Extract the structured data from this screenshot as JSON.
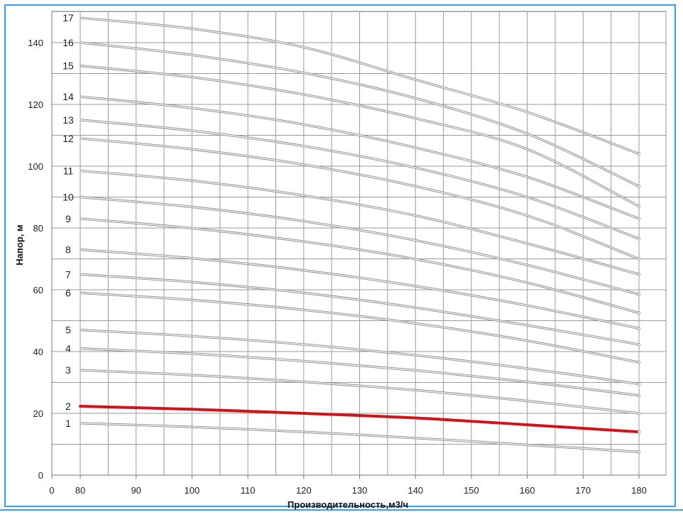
{
  "chart_data": {
    "type": "line",
    "title": "",
    "xlabel": "Производительность,м3/ч",
    "ylabel": "Напор, м",
    "xlim": [
      0,
      180
    ],
    "ylim": [
      0,
      150
    ],
    "x_ticks": [
      0,
      80,
      90,
      100,
      110,
      120,
      130,
      140,
      150,
      160,
      170,
      180
    ],
    "y_ticks": [
      0,
      20,
      40,
      60,
      80,
      100,
      120,
      140
    ],
    "grid": true,
    "legend": "none",
    "x": [
      80,
      100,
      120,
      140,
      160,
      180
    ],
    "series": [
      {
        "name": "1",
        "color": "#aaaaaa",
        "values": [
          16.8,
          15.6,
          14.0,
          12.0,
          9.8,
          7.5
        ]
      },
      {
        "name": "2",
        "color": "#d0141a",
        "highlight": true,
        "values": [
          22.3,
          21.3,
          20.0,
          18.5,
          16.3,
          14.0
        ]
      },
      {
        "name": "3",
        "color": "#aaaaaa",
        "values": [
          34.0,
          32.4,
          30.2,
          27.5,
          24.0,
          20.0
        ]
      },
      {
        "name": "4",
        "color": "#aaaaaa",
        "values": [
          41.0,
          39.3,
          36.9,
          33.9,
          30.2,
          25.8
        ]
      },
      {
        "name": "5",
        "color": "#aaaaaa",
        "values": [
          47.0,
          45.0,
          42.3,
          38.8,
          34.5,
          29.5
        ]
      },
      {
        "name": "6",
        "color": "#aaaaaa",
        "values": [
          59.0,
          56.7,
          53.5,
          49.1,
          43.5,
          36.5
        ]
      },
      {
        "name": "7",
        "color": "#aaaaaa",
        "values": [
          65.0,
          62.5,
          59.0,
          54.2,
          48.5,
          42.3
        ]
      },
      {
        "name": "8",
        "color": "#aaaaaa",
        "values": [
          73.0,
          70.2,
          66.3,
          61.2,
          54.9,
          47.5
        ]
      },
      {
        "name": "9",
        "color": "#aaaaaa",
        "values": [
          83.0,
          79.9,
          75.6,
          69.9,
          62.3,
          52.5
        ]
      },
      {
        "name": "10",
        "color": "#aaaaaa",
        "values": [
          90.0,
          86.8,
          82.2,
          76.0,
          68.0,
          58.5
        ]
      },
      {
        "name": "11",
        "color": "#aaaaaa",
        "values": [
          98.5,
          95.3,
          90.5,
          84.0,
          75.0,
          65.0
        ]
      },
      {
        "name": "12",
        "color": "#aaaaaa",
        "values": [
          109.0,
          105.5,
          100.5,
          93.5,
          84.0,
          70.0
        ]
      },
      {
        "name": "13",
        "color": "#aaaaaa",
        "values": [
          115.0,
          111.5,
          106.5,
          99.5,
          90.0,
          76.5
        ]
      },
      {
        "name": "14",
        "color": "#aaaaaa",
        "values": [
          122.5,
          118.8,
          113.5,
          106.0,
          96.5,
          83.0
        ]
      },
      {
        "name": "15",
        "color": "#aaaaaa",
        "values": [
          132.5,
          128.8,
          123.2,
          115.5,
          105.5,
          87.0
        ]
      },
      {
        "name": "16",
        "color": "#aaaaaa",
        "values": [
          140.0,
          136.0,
          130.2,
          122.0,
          110.5,
          93.5
        ]
      },
      {
        "name": "17",
        "color": "#aaaaaa",
        "values": [
          148.0,
          144.5,
          138.5,
          128.0,
          117.5,
          104.0
        ]
      }
    ]
  }
}
